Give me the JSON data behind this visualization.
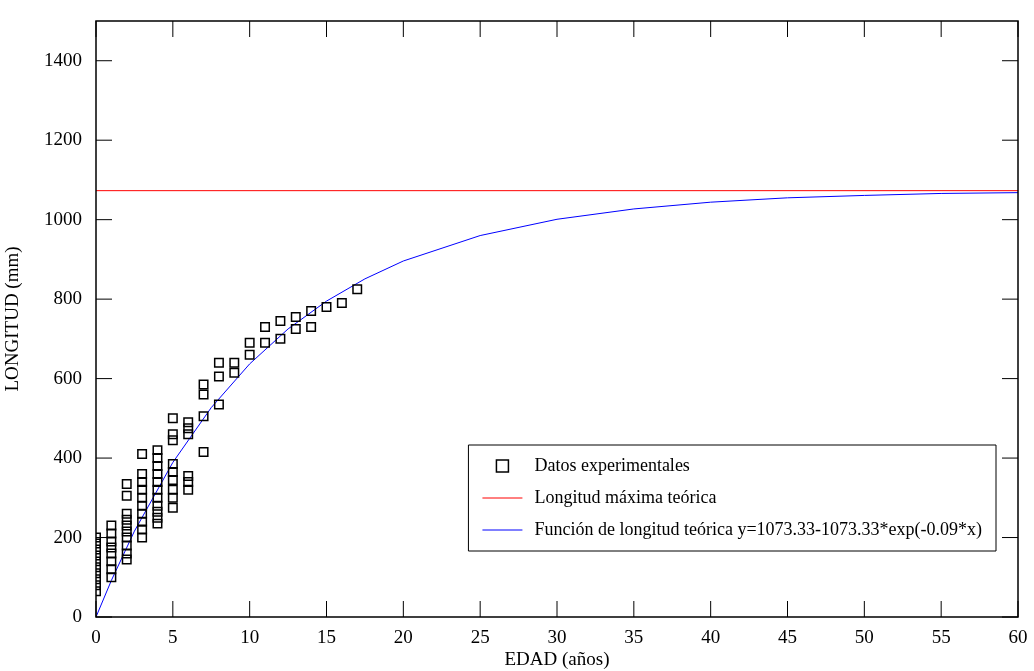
{
  "chart_data": {
    "type": "scatter",
    "xlabel": "EDAD (años)",
    "ylabel": "LONGITUD (mm)",
    "xlim": [
      0,
      60
    ],
    "xticks": [
      0,
      5,
      10,
      15,
      20,
      25,
      30,
      35,
      40,
      45,
      50,
      55,
      60
    ],
    "ylim": [
      0,
      1500
    ],
    "yticks": [
      0,
      200,
      400,
      600,
      800,
      1000,
      1200,
      1400
    ],
    "grid": false,
    "legend": "bottom right",
    "series": [
      {
        "name": "Datos experimentales",
        "marker": "square",
        "color": "#000000",
        "x": [
          0,
          0,
          0,
          0,
          0,
          0,
          0,
          0,
          0,
          0,
          1,
          1,
          1,
          1,
          1,
          1,
          1,
          1,
          2,
          2,
          2,
          2,
          2,
          2,
          2,
          2,
          2,
          2,
          3,
          3,
          3,
          3,
          3,
          3,
          3,
          3,
          3,
          3,
          4,
          4,
          4,
          4,
          4,
          4,
          4,
          4,
          4,
          4,
          4,
          5,
          5,
          5,
          5,
          5,
          5,
          5,
          5,
          5,
          6,
          6,
          6,
          6,
          6,
          6,
          7,
          7,
          7,
          7,
          8,
          8,
          8,
          9,
          9,
          10,
          10,
          11,
          11,
          12,
          12,
          13,
          13,
          14,
          14,
          15,
          16,
          17
        ],
        "values": [
          65,
          80,
          95,
          110,
          125,
          140,
          155,
          170,
          185,
          200,
          100,
          120,
          140,
          160,
          175,
          190,
          210,
          230,
          145,
          160,
          180,
          200,
          215,
          230,
          245,
          260,
          305,
          335,
          200,
          220,
          240,
          260,
          280,
          300,
          320,
          340,
          360,
          410,
          235,
          250,
          265,
          280,
          300,
          320,
          340,
          360,
          380,
          400,
          420,
          275,
          300,
          320,
          345,
          365,
          385,
          445,
          460,
          500,
          320,
          340,
          355,
          460,
          475,
          490,
          415,
          505,
          560,
          585,
          535,
          605,
          640,
          615,
          640,
          660,
          690,
          690,
          730,
          700,
          745,
          725,
          755,
          730,
          770,
          780,
          790,
          825
        ]
      },
      {
        "name": "Longitud máxima teórica",
        "type": "line",
        "marker": "none",
        "color": "#ff0000",
        "x": [
          0,
          60
        ],
        "values": [
          1073,
          1073
        ]
      },
      {
        "name": "Función de longitud teórica y=1073.33-1073.33*exp(-0.09*x)",
        "type": "line",
        "marker": "none",
        "color": "#0000ff",
        "x": [
          0,
          1,
          2.5,
          5,
          7.5,
          10,
          12.5,
          15,
          17.5,
          20,
          25,
          30,
          35,
          40,
          45,
          50,
          55,
          60
        ],
        "values": [
          0,
          92,
          216,
          389,
          527,
          637,
          725,
          795,
          851,
          896,
          960,
          1001,
          1027,
          1044,
          1055,
          1061,
          1066,
          1068
        ]
      }
    ]
  }
}
